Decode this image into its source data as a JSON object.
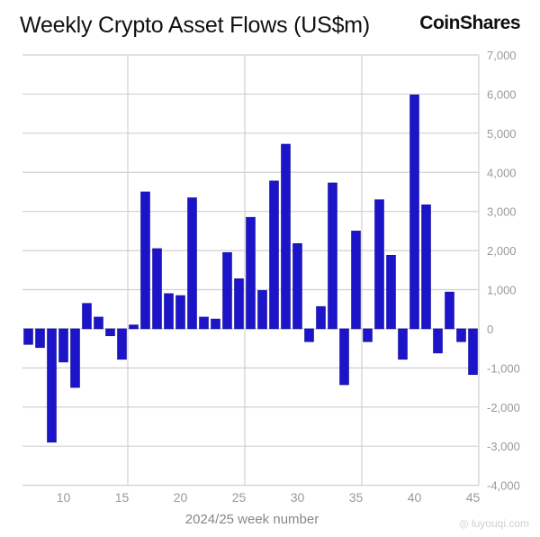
{
  "header": {
    "title": "Weekly Crypto Asset Flows (US$m)",
    "logo": "CoinShares"
  },
  "watermark": "路由器 luyouqi.com",
  "colors": {
    "bar": "#1c14c8",
    "grid": "#d0d0d0",
    "tick": "#999999"
  },
  "chart_data": {
    "type": "bar",
    "title": "Weekly Crypto Asset Flows (US$m)",
    "xlabel": "2024/25 week number",
    "ylabel": "",
    "x": [
      7,
      8,
      9,
      10,
      11,
      12,
      13,
      14,
      15,
      16,
      17,
      18,
      19,
      20,
      21,
      22,
      23,
      24,
      25,
      26,
      27,
      28,
      29,
      30,
      31,
      32,
      33,
      34,
      35,
      36,
      37,
      38,
      39,
      40,
      41,
      42,
      43,
      44,
      45
    ],
    "values": [
      -400,
      -480,
      -2900,
      -850,
      -1500,
      650,
      300,
      -180,
      -780,
      100,
      3500,
      2050,
      900,
      850,
      3350,
      300,
      250,
      1950,
      1280,
      2850,
      980,
      3780,
      4720,
      2180,
      -330,
      570,
      3730,
      -1430,
      2500,
      -330,
      3300,
      1880,
      -780,
      5980,
      3170,
      -620,
      940,
      -330,
      -1170
    ],
    "ylim": [
      -4000,
      7000
    ],
    "yticks": [
      "7,000",
      "6,000",
      "5,000",
      "4,000",
      "3,000",
      "2,000",
      "1,000",
      "0",
      "-1,000",
      "-2,000",
      "-3,000",
      "-4,000"
    ],
    "xticks": [
      "10",
      "15",
      "20",
      "25",
      "30",
      "35",
      "40",
      "45"
    ],
    "grid": true,
    "y_axis_position": "right"
  }
}
